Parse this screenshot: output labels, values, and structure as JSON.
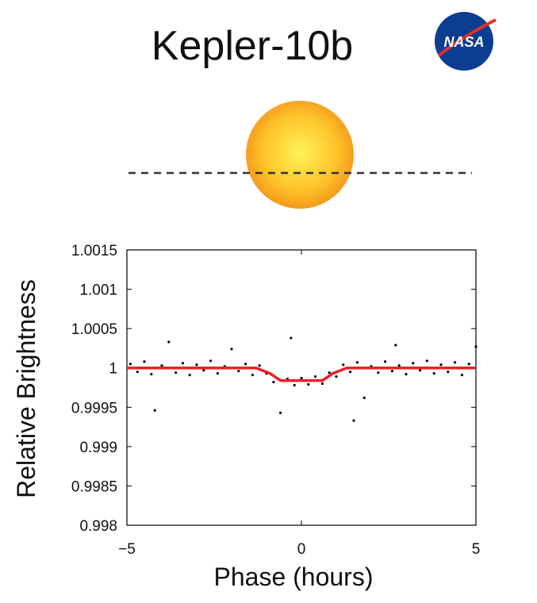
{
  "title": "Kepler-10b",
  "logo_text": "NASA",
  "chart_data": {
    "type": "scatter",
    "x_label": "Phase (hours)",
    "y_label": "Relative Brightness",
    "xlim": [
      -5,
      5
    ],
    "ylim": [
      0.998,
      1.0015
    ],
    "xticks": [
      {
        "value": -5,
        "label": "−5"
      },
      0,
      5
    ],
    "yticks": [
      0.998,
      0.9985,
      0.999,
      0.9995,
      1,
      1.0005,
      1.001,
      1.0015
    ],
    "color": "#000000",
    "x": [
      -4.9,
      -4.7,
      -4.5,
      -4.3,
      -4.2,
      -4.0,
      -3.8,
      -3.6,
      -3.4,
      -3.2,
      -3.0,
      -2.8,
      -2.6,
      -2.4,
      -2.2,
      -2.0,
      -1.8,
      -1.6,
      -1.4,
      -1.2,
      -1.0,
      -0.8,
      -0.6,
      -0.4,
      -0.3,
      -0.2,
      0,
      0.2,
      0.4,
      0.6,
      0.8,
      1.0,
      1.2,
      1.4,
      1.5,
      1.6,
      1.8,
      2.0,
      2.2,
      2.4,
      2.6,
      2.7,
      2.8,
      3.0,
      3.2,
      3.4,
      3.6,
      3.8,
      4.0,
      4.2,
      4.4,
      4.6,
      4.8,
      5.0
    ],
    "values": [
      1.00005,
      0.99995,
      1.00008,
      0.99992,
      0.99946,
      1.00003,
      1.00033,
      0.99994,
      1.00006,
      0.99991,
      1.00004,
      0.99997,
      1.00009,
      0.99993,
      1.00002,
      1.00024,
      0.99996,
      1.00005,
      0.99991,
      1.00003,
      0.99993,
      0.99982,
      0.99943,
      0.99986,
      1.00038,
      0.99978,
      0.99987,
      0.99979,
      0.99989,
      0.9998,
      0.99994,
      0.99989,
      1.00004,
      0.99995,
      0.99933,
      1.00007,
      0.99962,
      1.00002,
      0.99994,
      1.00008,
      0.99996,
      1.00029,
      1.00003,
      0.99992,
      1.00006,
      0.99997,
      1.00009,
      0.99993,
      1.00004,
      0.99995,
      1.00007,
      0.99991,
      1.00005,
      1.00027
    ],
    "model": {
      "x": [
        -5,
        -1.3,
        -0.9,
        -0.6,
        0.6,
        0.9,
        1.3,
        5
      ],
      "values": [
        1,
        1,
        0.99993,
        0.99984,
        0.99984,
        0.99993,
        1,
        1
      ],
      "color": "#e8202a"
    }
  }
}
